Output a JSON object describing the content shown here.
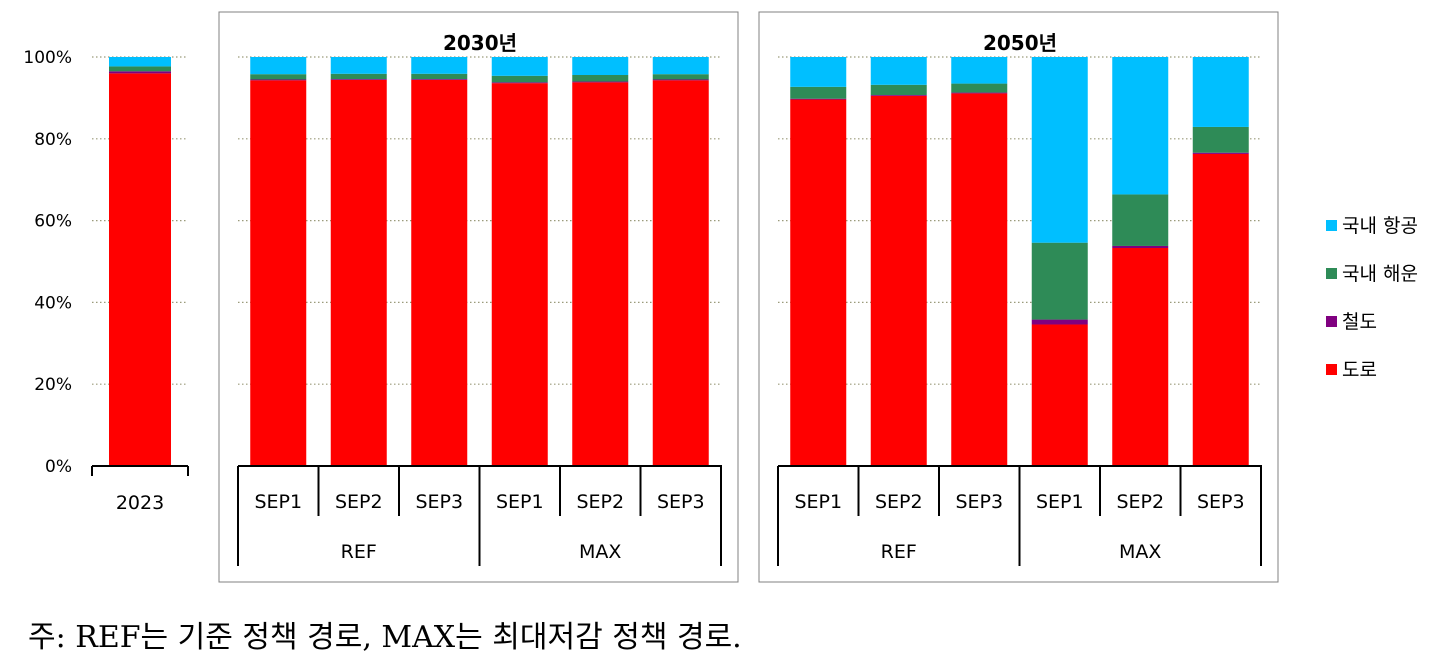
{
  "chart_data": {
    "type": "bar",
    "stacked": true,
    "ylim": [
      0,
      100
    ],
    "y_ticks": [
      "0%",
      "20%",
      "40%",
      "60%",
      "80%",
      "100%"
    ],
    "grid": true,
    "legend_position": "right",
    "legend": [
      {
        "name": "국내 항공",
        "color": "#00BFFF"
      },
      {
        "name": "국내 해운",
        "color": "#2E8B57"
      },
      {
        "name": "철도",
        "color": "#800080"
      },
      {
        "name": "도로",
        "color": "#FF0000"
      }
    ],
    "panels": [
      {
        "title": "",
        "groups": [],
        "bars": [
          {
            "label": "2023",
            "values": {
              "도로": 96.0,
              "철도": 0.5,
              "국내 해운": 1.2,
              "국내 항공": 2.3
            }
          }
        ]
      },
      {
        "title": "2030년",
        "groups": [
          "REF",
          "MAX"
        ],
        "bars": [
          {
            "label": "SEP1",
            "group": "REF",
            "values": {
              "도로": 94.3,
              "철도": 0.2,
              "국내 해운": 1.3,
              "국내 항공": 4.2
            }
          },
          {
            "label": "SEP2",
            "group": "REF",
            "values": {
              "도로": 94.4,
              "철도": 0.2,
              "국내 해운": 1.3,
              "국내 항공": 4.1
            }
          },
          {
            "label": "SEP3",
            "group": "REF",
            "values": {
              "도로": 94.4,
              "철도": 0.2,
              "국내 해운": 1.3,
              "국내 항공": 4.1
            }
          },
          {
            "label": "SEP1",
            "group": "MAX",
            "values": {
              "도로": 93.6,
              "철도": 0.2,
              "국내 해운": 1.6,
              "국내 항공": 4.6
            }
          },
          {
            "label": "SEP2",
            "group": "MAX",
            "values": {
              "도로": 93.8,
              "철도": 0.2,
              "국내 해운": 1.6,
              "국내 항공": 4.4
            }
          },
          {
            "label": "SEP3",
            "group": "MAX",
            "values": {
              "도로": 94.3,
              "철도": 0.2,
              "국내 해운": 1.3,
              "국내 항공": 4.2
            }
          }
        ]
      },
      {
        "title": "2050년",
        "groups": [
          "REF",
          "MAX"
        ],
        "bars": [
          {
            "label": "SEP1",
            "group": "REF",
            "values": {
              "도로": 89.6,
              "철도": 0.2,
              "국내 해운": 2.9,
              "국내 항공": 7.3
            }
          },
          {
            "label": "SEP2",
            "group": "REF",
            "values": {
              "도로": 90.5,
              "철도": 0.2,
              "국내 해운": 2.5,
              "국내 항공": 6.8
            }
          },
          {
            "label": "SEP3",
            "group": "REF",
            "values": {
              "도로": 91.1,
              "철도": 0.2,
              "국내 해운": 2.2,
              "국내 항공": 6.5
            }
          },
          {
            "label": "SEP1",
            "group": "MAX",
            "values": {
              "도로": 34.6,
              "철도": 1.2,
              "국내 해운": 18.8,
              "국내 항공": 45.4
            }
          },
          {
            "label": "SEP2",
            "group": "MAX",
            "values": {
              "도로": 53.3,
              "철도": 0.5,
              "국내 해운": 12.6,
              "국내 항공": 33.6
            }
          },
          {
            "label": "SEP3",
            "group": "MAX",
            "values": {
              "도로": 76.3,
              "철도": 0.3,
              "국내 해운": 6.3,
              "국내 항공": 17.1
            }
          }
        ]
      }
    ]
  },
  "footnote": "주: REF는 기준 정책 경로, MAX는 최대저감 정책 경로."
}
